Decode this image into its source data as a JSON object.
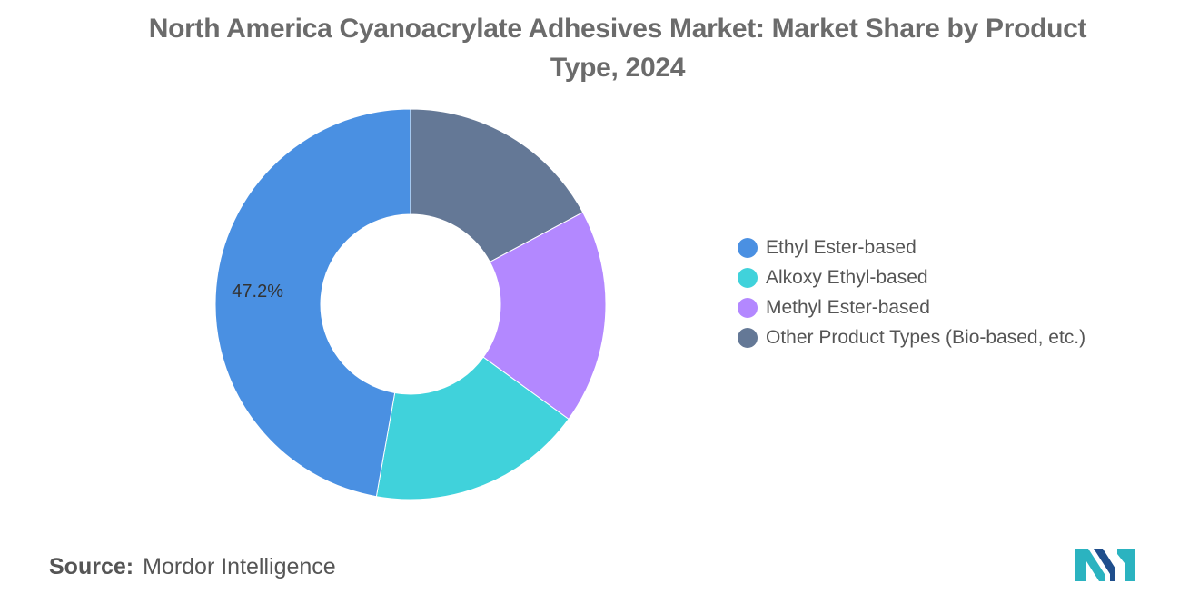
{
  "title": "North America Cyanoacrylate Adhesives Market: Market Share by Product Type, 2024",
  "chart_data": {
    "type": "pie",
    "donut": true,
    "title": "North America Cyanoacrylate Adhesives Market: Market Share by Product Type, 2024",
    "unit": "%",
    "legend_position": "right",
    "series": [
      {
        "name": "Ethyl Ester-based",
        "value": 47.2,
        "color": "#4A90E2",
        "label": "47.2%"
      },
      {
        "name": "Alkoxy Ethyl-based",
        "value": 17.8,
        "color": "#40D2DB",
        "label": ""
      },
      {
        "name": "Methyl Ester-based",
        "value": 17.8,
        "color": "#B388FF",
        "label": ""
      },
      {
        "name": "Other Product Types (Bio-based, etc.)",
        "value": 17.2,
        "color": "#647896",
        "label": ""
      }
    ]
  },
  "source": {
    "key": "Source:",
    "value": "Mordor Intelligence"
  },
  "logo": {
    "colors": [
      "#2BB3C0",
      "#1F4E8C"
    ]
  }
}
